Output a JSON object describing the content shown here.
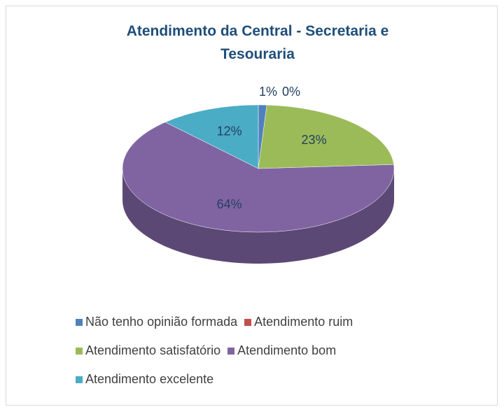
{
  "chart_data": {
    "type": "pie",
    "title": "Atendimento da Central - Secretaria e Tesouraria",
    "categories": [
      "Não tenho opinião formada",
      "Atendimento ruim",
      "Atendimento satisfatório",
      "Atendimento bom",
      "Atendimento excelente"
    ],
    "values": [
      1,
      0,
      23,
      64,
      12
    ],
    "value_labels": [
      "1%",
      "0%",
      "23%",
      "64%",
      "12%"
    ],
    "colors": [
      "#4f81bd",
      "#c0504d",
      "#9bbb59",
      "#8064a2",
      "#4bacc6"
    ],
    "legend": "bottom"
  }
}
